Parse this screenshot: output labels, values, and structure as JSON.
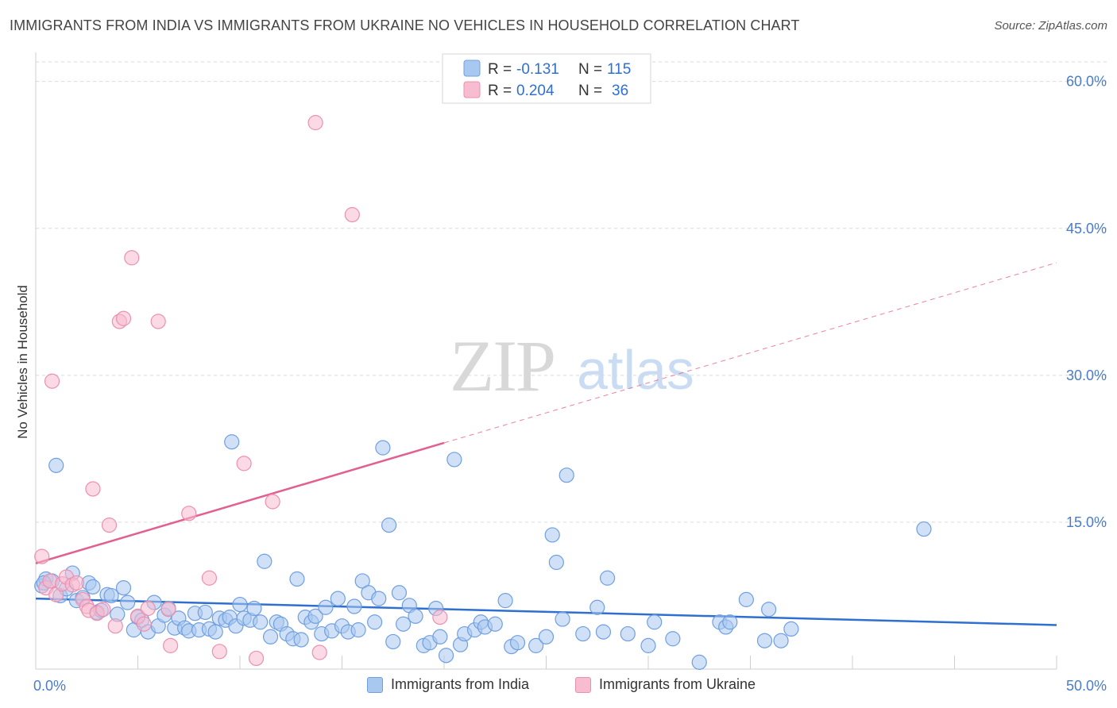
{
  "title": "IMMIGRANTS FROM INDIA VS IMMIGRANTS FROM UKRAINE NO VEHICLES IN HOUSEHOLD CORRELATION CHART",
  "source": "Source: ZipAtlas.com",
  "watermark": {
    "zip": "ZIP",
    "atlas": "atlas"
  },
  "colors": {
    "india_fill": "#a9c8f0",
    "india_stroke": "#6f9fe0",
    "india_line": "#2f6fcf",
    "ukraine_fill": "#f7bcd0",
    "ukraine_stroke": "#ec8fb0",
    "ukraine_line": "#e2608f",
    "grid": "#d9d9d9",
    "tick_text": "#4a7cc7"
  },
  "legend": {
    "r_label": "R =",
    "n_label": "N =",
    "india": {
      "r": "-0.131",
      "n": "115"
    },
    "ukraine": {
      "r": "0.204",
      "n": "36"
    }
  },
  "bottom_legend": {
    "india": "Immigrants from India",
    "ukraine": "Immigrants from Ukraine"
  },
  "chart_data": {
    "type": "scatter",
    "title": "IMMIGRANTS FROM INDIA VS IMMIGRANTS FROM UKRAINE NO VEHICLES IN HOUSEHOLD CORRELATION CHART",
    "xlabel": "",
    "ylabel": "No Vehicles in Household",
    "xlim": [
      0,
      50
    ],
    "ylim": [
      0,
      62
    ],
    "x_tick_labels": [
      "0.0%",
      "50.0%"
    ],
    "y_ticks": [
      15,
      30,
      45,
      60
    ],
    "y_tick_labels": [
      "15.0%",
      "30.0%",
      "45.0%",
      "60.0%"
    ],
    "grid": true,
    "series": [
      {
        "name": "Immigrants from India",
        "r": -0.131,
        "n": 115,
        "trend": {
          "x": [
            0,
            50
          ],
          "y": [
            7.2,
            4.5
          ],
          "style": "solid"
        },
        "points": [
          [
            0.3,
            8.5
          ],
          [
            0.5,
            9.2
          ],
          [
            0.8,
            9.0
          ],
          [
            1.0,
            20.8
          ],
          [
            1.2,
            7.5
          ],
          [
            1.5,
            8.2
          ],
          [
            1.8,
            9.8
          ],
          [
            2.0,
            7.0
          ],
          [
            2.3,
            7.3
          ],
          [
            2.6,
            8.8
          ],
          [
            2.8,
            8.4
          ],
          [
            3.0,
            5.8
          ],
          [
            3.2,
            6.0
          ],
          [
            3.5,
            7.6
          ],
          [
            3.7,
            7.5
          ],
          [
            4.0,
            5.6
          ],
          [
            4.3,
            8.3
          ],
          [
            4.5,
            6.8
          ],
          [
            4.8,
            4.0
          ],
          [
            5.0,
            5.3
          ],
          [
            5.2,
            5.0
          ],
          [
            5.5,
            3.8
          ],
          [
            5.8,
            6.8
          ],
          [
            6.0,
            4.4
          ],
          [
            6.3,
            5.5
          ],
          [
            6.5,
            6.2
          ],
          [
            6.8,
            4.2
          ],
          [
            7.0,
            5.2
          ],
          [
            7.3,
            4.2
          ],
          [
            7.5,
            3.9
          ],
          [
            7.8,
            5.7
          ],
          [
            8.0,
            4.0
          ],
          [
            8.3,
            5.8
          ],
          [
            8.5,
            4.1
          ],
          [
            8.8,
            3.8
          ],
          [
            9.0,
            5.2
          ],
          [
            9.3,
            5.0
          ],
          [
            9.5,
            5.3
          ],
          [
            9.6,
            23.2
          ],
          [
            9.8,
            4.4
          ],
          [
            10.0,
            6.6
          ],
          [
            10.2,
            5.2
          ],
          [
            10.5,
            5.0
          ],
          [
            10.7,
            6.2
          ],
          [
            11.0,
            4.8
          ],
          [
            11.2,
            11.0
          ],
          [
            11.5,
            3.3
          ],
          [
            11.8,
            4.8
          ],
          [
            12.0,
            4.6
          ],
          [
            12.3,
            3.6
          ],
          [
            12.6,
            3.1
          ],
          [
            12.8,
            9.2
          ],
          [
            13.0,
            3.0
          ],
          [
            13.2,
            5.3
          ],
          [
            13.5,
            4.8
          ],
          [
            13.7,
            5.4
          ],
          [
            14.0,
            3.6
          ],
          [
            14.2,
            6.3
          ],
          [
            14.5,
            3.9
          ],
          [
            14.8,
            7.2
          ],
          [
            15.0,
            4.4
          ],
          [
            15.3,
            3.8
          ],
          [
            15.6,
            6.4
          ],
          [
            15.8,
            4.0
          ],
          [
            16.0,
            9.0
          ],
          [
            16.3,
            7.8
          ],
          [
            16.6,
            4.8
          ],
          [
            16.8,
            7.2
          ],
          [
            17.0,
            22.6
          ],
          [
            17.3,
            14.7
          ],
          [
            17.5,
            2.8
          ],
          [
            17.8,
            7.8
          ],
          [
            18.0,
            4.6
          ],
          [
            18.3,
            6.5
          ],
          [
            18.6,
            5.4
          ],
          [
            19.0,
            2.4
          ],
          [
            19.3,
            2.7
          ],
          [
            19.6,
            6.2
          ],
          [
            19.8,
            3.3
          ],
          [
            20.1,
            1.4
          ],
          [
            20.5,
            21.4
          ],
          [
            20.8,
            2.5
          ],
          [
            21.0,
            3.6
          ],
          [
            21.5,
            4.0
          ],
          [
            21.8,
            4.8
          ],
          [
            22.0,
            4.3
          ],
          [
            22.5,
            4.6
          ],
          [
            23.0,
            7.0
          ],
          [
            23.3,
            2.3
          ],
          [
            23.6,
            2.7
          ],
          [
            24.5,
            2.4
          ],
          [
            25.0,
            3.3
          ],
          [
            25.3,
            13.7
          ],
          [
            25.5,
            10.9
          ],
          [
            25.8,
            5.1
          ],
          [
            26.0,
            19.8
          ],
          [
            26.8,
            3.6
          ],
          [
            27.5,
            6.3
          ],
          [
            27.8,
            3.8
          ],
          [
            28.0,
            9.3
          ],
          [
            29.0,
            3.6
          ],
          [
            30.0,
            2.4
          ],
          [
            30.3,
            4.8
          ],
          [
            31.2,
            3.1
          ],
          [
            32.5,
            0.7
          ],
          [
            33.5,
            4.8
          ],
          [
            33.8,
            4.3
          ],
          [
            34.0,
            4.8
          ],
          [
            34.8,
            7.1
          ],
          [
            35.7,
            2.9
          ],
          [
            35.9,
            6.1
          ],
          [
            36.5,
            2.9
          ],
          [
            37.0,
            4.1
          ],
          [
            43.5,
            14.3
          ],
          [
            0.4,
            8.8
          ]
        ]
      },
      {
        "name": "Immigrants from Ukraine",
        "r": 0.204,
        "n": 36,
        "trend": {
          "x": [
            0,
            20
          ],
          "y": [
            10.8,
            23.1
          ],
          "style": "solid"
        },
        "trend_extension": {
          "x": [
            20,
            50
          ],
          "y": [
            23.1,
            41.5
          ],
          "style": "dashed"
        },
        "points": [
          [
            0.3,
            11.5
          ],
          [
            0.5,
            8.3
          ],
          [
            0.7,
            9.0
          ],
          [
            0.8,
            29.4
          ],
          [
            1.0,
            7.6
          ],
          [
            1.3,
            8.7
          ],
          [
            1.5,
            9.4
          ],
          [
            1.8,
            8.6
          ],
          [
            2.0,
            8.8
          ],
          [
            2.3,
            7.1
          ],
          [
            2.5,
            6.4
          ],
          [
            2.6,
            6.0
          ],
          [
            2.8,
            18.4
          ],
          [
            3.0,
            5.7
          ],
          [
            3.3,
            6.1
          ],
          [
            3.6,
            14.7
          ],
          [
            3.9,
            4.4
          ],
          [
            4.1,
            35.5
          ],
          [
            4.3,
            35.8
          ],
          [
            4.7,
            42.0
          ],
          [
            5.0,
            5.4
          ],
          [
            5.3,
            4.6
          ],
          [
            5.5,
            6.2
          ],
          [
            6.0,
            35.5
          ],
          [
            6.5,
            6.1
          ],
          [
            6.6,
            2.4
          ],
          [
            7.5,
            15.9
          ],
          [
            8.5,
            9.3
          ],
          [
            9.0,
            1.8
          ],
          [
            10.2,
            21.0
          ],
          [
            10.8,
            1.1
          ],
          [
            11.6,
            17.1
          ],
          [
            13.7,
            55.8
          ],
          [
            13.9,
            1.7
          ],
          [
            15.5,
            46.4
          ],
          [
            19.8,
            5.3
          ]
        ]
      }
    ]
  }
}
